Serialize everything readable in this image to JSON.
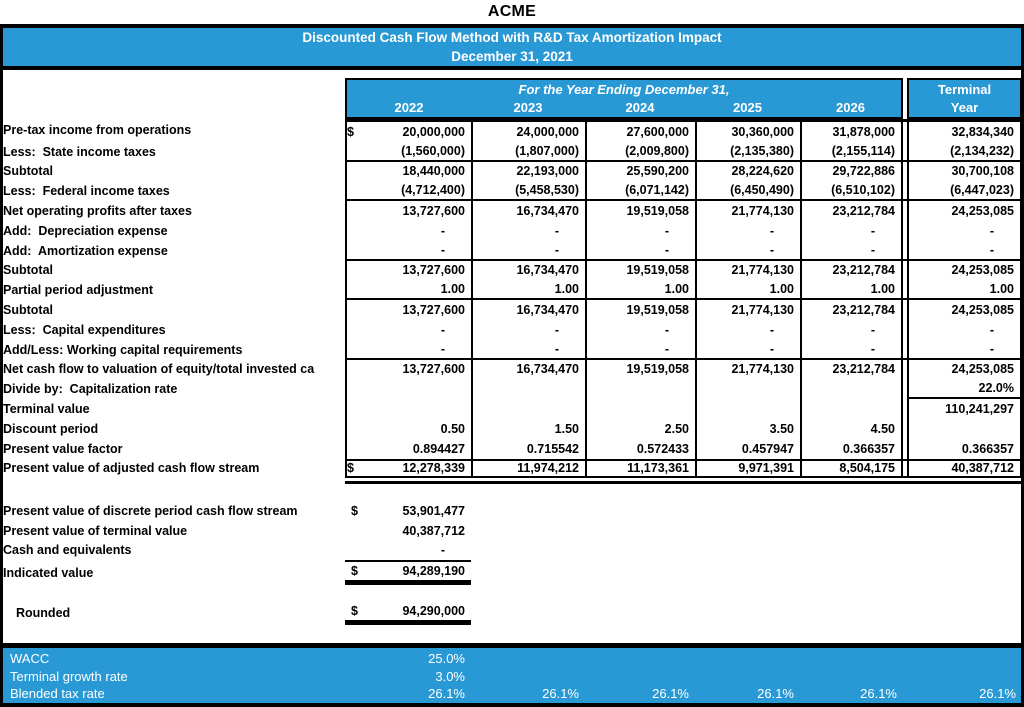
{
  "title": "ACME",
  "banner": {
    "line1": "Discounted Cash Flow Method with R&D Tax Amortization Impact",
    "line2": "December 31, 2021"
  },
  "colors": {
    "accent_blue": "#2999D6",
    "border_black": "#000000",
    "text_white": "#FFFFFF"
  },
  "table": {
    "header": {
      "span_label": "For the Year Ending December 31,",
      "years": [
        "2022",
        "2023",
        "2024",
        "2025",
        "2026"
      ],
      "terminal": {
        "line1": "Terminal",
        "line2": "Year"
      }
    },
    "rows": [
      {
        "label": "Pre-tax income from operations",
        "dollar": true,
        "values": [
          "20,000,000",
          "24,000,000",
          "27,600,000",
          "30,360,000",
          "31,878,000",
          "32,834,340"
        ]
      },
      {
        "label": "Less:  State income taxes",
        "rule_below": true,
        "values": [
          "(1,560,000)",
          "(1,807,000)",
          "(2,009,800)",
          "(2,135,380)",
          "(2,155,114)",
          "(2,134,232)"
        ]
      },
      {
        "label": "Subtotal",
        "values": [
          "18,440,000",
          "22,193,000",
          "25,590,200",
          "28,224,620",
          "29,722,886",
          "30,700,108"
        ]
      },
      {
        "label": "Less:  Federal income taxes",
        "rule_below": true,
        "values": [
          "(4,712,400)",
          "(5,458,530)",
          "(6,071,142)",
          "(6,450,490)",
          "(6,510,102)",
          "(6,447,023)"
        ]
      },
      {
        "label": "Net operating profits after taxes",
        "values": [
          "13,727,600",
          "16,734,470",
          "19,519,058",
          "21,774,130",
          "23,212,784",
          "24,253,085"
        ]
      },
      {
        "label": "Add:  Depreciation expense",
        "values": [
          "-",
          "-",
          "-",
          "-",
          "-",
          "-"
        ]
      },
      {
        "label": "Add:  Amortization expense",
        "rule_below": true,
        "values": [
          "-",
          "-",
          "-",
          "-",
          "-",
          "-"
        ]
      },
      {
        "label": "Subtotal",
        "values": [
          "13,727,600",
          "16,734,470",
          "19,519,058",
          "21,774,130",
          "23,212,784",
          "24,253,085"
        ]
      },
      {
        "label": "Partial period adjustment",
        "rule_below": true,
        "values": [
          "1.00",
          "1.00",
          "1.00",
          "1.00",
          "1.00",
          "1.00"
        ]
      },
      {
        "label": "Subtotal",
        "values": [
          "13,727,600",
          "16,734,470",
          "19,519,058",
          "21,774,130",
          "23,212,784",
          "24,253,085"
        ]
      },
      {
        "label": "Less:  Capital expenditures",
        "values": [
          "-",
          "-",
          "-",
          "-",
          "-",
          "-"
        ]
      },
      {
        "label": "Add/Less: Working capital requirements",
        "rule_below": true,
        "values": [
          "-",
          "-",
          "-",
          "-",
          "-",
          "-"
        ]
      },
      {
        "label": "Net cash flow to valuation of equity/total invested ca",
        "values": [
          "13,727,600",
          "16,734,470",
          "19,519,058",
          "21,774,130",
          "23,212,784",
          "24,253,085"
        ]
      },
      {
        "label": "Divide by:  Capitalization rate",
        "terminal_rule_below": true,
        "values": [
          "",
          "",
          "",
          "",
          "",
          "22.0%"
        ]
      },
      {
        "label": "Terminal value",
        "values": [
          "",
          "",
          "",
          "",
          "",
          "110,241,297"
        ]
      },
      {
        "label": "Discount period",
        "values": [
          "0.50",
          "1.50",
          "2.50",
          "3.50",
          "4.50",
          ""
        ]
      },
      {
        "label": "Present value factor",
        "values": [
          "0.894427",
          "0.715542",
          "0.572433",
          "0.457947",
          "0.366357",
          "0.366357"
        ]
      },
      {
        "label": "Present value of adjusted cash flow stream",
        "dollar": true,
        "rule_above": true,
        "double_below": true,
        "values": [
          "12,278,339",
          "11,974,212",
          "11,173,361",
          "9,971,391",
          "8,504,175",
          "40,387,712"
        ]
      }
    ]
  },
  "summary": {
    "rows": [
      {
        "label": "Present value of discrete period cash flow stream",
        "dollar": true,
        "value": "53,901,477"
      },
      {
        "label": "Present value of terminal value",
        "value": "40,387,712"
      },
      {
        "label": "Cash and equivalents",
        "value": "-"
      },
      {
        "label": "Indicated value",
        "dollar": true,
        "value": "94,289,190",
        "style": "total"
      },
      {
        "label": "Rounded",
        "dollar": true,
        "value": "94,290,000",
        "style": "rounded"
      }
    ]
  },
  "footer": {
    "rows": [
      {
        "label": "WACC",
        "values": [
          "25.0%",
          "",
          "",
          "",
          "",
          ""
        ]
      },
      {
        "label": "Terminal growth rate",
        "values": [
          "3.0%",
          "",
          "",
          "",
          "",
          ""
        ]
      },
      {
        "label": "Blended tax rate",
        "values": [
          "26.1%",
          "26.1%",
          "26.1%",
          "26.1%",
          "26.1%",
          "26.1%"
        ]
      }
    ]
  }
}
